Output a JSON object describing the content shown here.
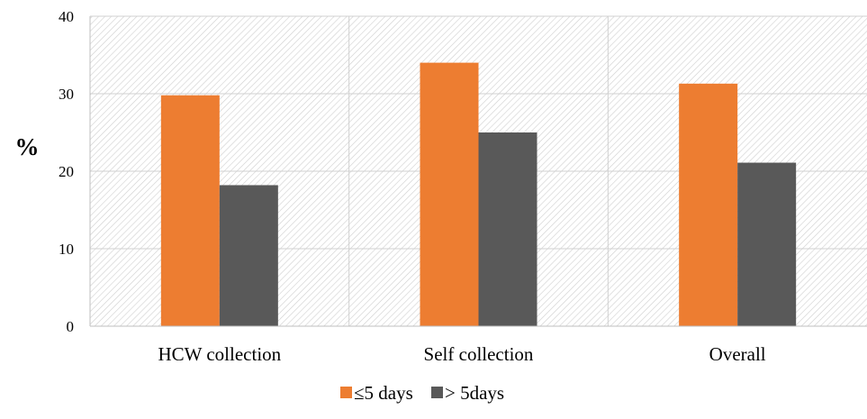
{
  "chart_data": {
    "type": "bar",
    "title": "",
    "xlabel": "",
    "ylabel": "%",
    "ylim": [
      0,
      40
    ],
    "yticks": [
      0,
      10,
      20,
      30,
      40
    ],
    "categories": [
      "HCW collection",
      "Self collection",
      "Overall"
    ],
    "series": [
      {
        "name": "≤5 days",
        "values": [
          29.8,
          34.0,
          31.3
        ],
        "color": "#ED7D31"
      },
      {
        "name": "> 5days",
        "values": [
          18.2,
          25.0,
          21.1
        ],
        "color": "#595959"
      }
    ],
    "grid": true,
    "plot_background": "hatched",
    "legend_position": "bottom-center"
  }
}
